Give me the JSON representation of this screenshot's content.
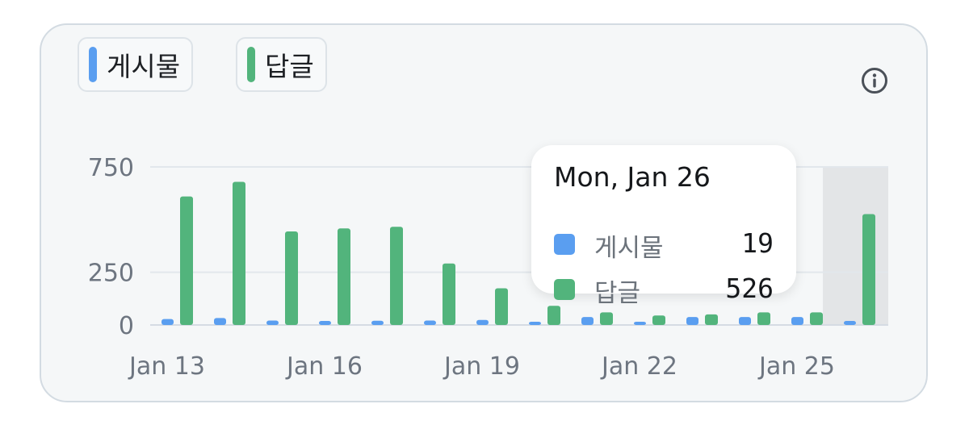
{
  "legend": {
    "items": [
      {
        "label": "게시물",
        "color": "#5a9ef0"
      },
      {
        "label": "답글",
        "color": "#52b47c"
      }
    ]
  },
  "info_icon": "info-icon",
  "tooltip": {
    "title": "Mon, Jan 26",
    "rows": [
      {
        "label": "게시물",
        "value": "19",
        "color": "#5a9ef0"
      },
      {
        "label": "답글",
        "value": "526",
        "color": "#52b47c"
      }
    ]
  },
  "chart_data": {
    "type": "bar",
    "categories": [
      "Jan 13",
      "Jan 14",
      "Jan 15",
      "Jan 16",
      "Jan 17",
      "Jan 18",
      "Jan 19",
      "Jan 20",
      "Jan 21",
      "Jan 22",
      "Jan 23",
      "Jan 24",
      "Jan 25",
      "Jan 26"
    ],
    "x_tick_labels": [
      "Jan 13",
      "Jan 16",
      "Jan 19",
      "Jan 22",
      "Jan 25"
    ],
    "y_ticks": [
      0,
      250,
      750
    ],
    "ylim": [
      0,
      750
    ],
    "grid": true,
    "highlighted_category": "Jan 26",
    "series": [
      {
        "name": "게시물",
        "color": "#5a9ef0",
        "values": [
          28,
          33,
          21,
          19,
          20,
          21,
          24,
          11,
          38,
          11,
          38,
          38,
          38,
          19
        ]
      },
      {
        "name": "답글",
        "color": "#52b47c",
        "values": [
          610,
          679,
          444,
          458,
          466,
          292,
          174,
          91,
          60,
          45,
          50,
          60,
          60,
          526
        ]
      }
    ]
  }
}
